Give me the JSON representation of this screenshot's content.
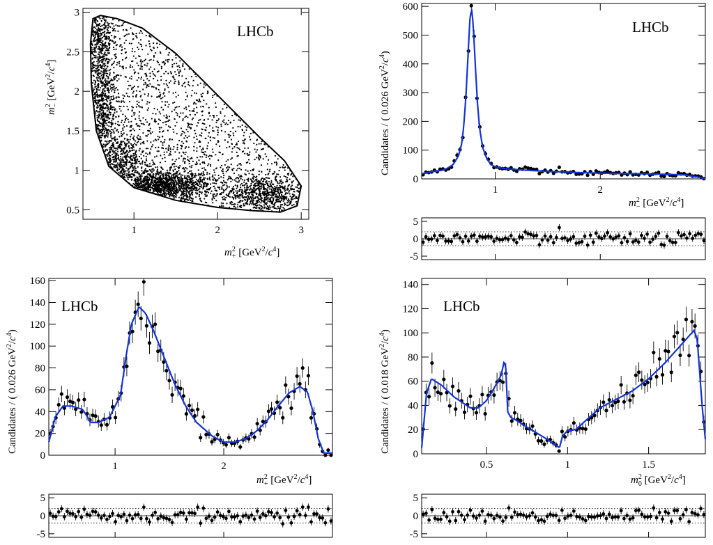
{
  "chart_data": [
    {
      "id": "dalitz",
      "type": "scatter",
      "logo": "LHCb",
      "xlabel": "m_+^2 [GeV^2/c^4]",
      "ylabel": "m_-^2 [GeV^2/c^4]",
      "xlim": [
        0.39,
        3.09
      ],
      "ylim": [
        0.38,
        3.05
      ],
      "x_ticks": [
        1,
        2,
        3
      ],
      "y_ticks": [
        0.5,
        1,
        1.5,
        2,
        2.5,
        3
      ],
      "boundary": [
        [
          0.51,
          2.92
        ],
        [
          0.6,
          2.96
        ],
        [
          0.8,
          2.92
        ],
        [
          1.1,
          2.8
        ],
        [
          1.5,
          2.48
        ],
        [
          2.0,
          1.95
        ],
        [
          2.5,
          1.42
        ],
        [
          2.8,
          1.12
        ],
        [
          3.0,
          0.8
        ],
        [
          2.95,
          0.55
        ],
        [
          2.75,
          0.47
        ],
        [
          2.4,
          0.49
        ],
        [
          2.0,
          0.53
        ],
        [
          1.5,
          0.62
        ],
        [
          1.0,
          0.78
        ],
        [
          0.7,
          1.05
        ],
        [
          0.55,
          1.5
        ],
        [
          0.49,
          2.1
        ],
        [
          0.48,
          2.6
        ],
        [
          0.51,
          2.92
        ]
      ],
      "point_count": 4500
    },
    {
      "id": "m_minus",
      "type": "line",
      "logo": "LHCb",
      "xlabel": "m_-^2 [GeV^2/c^4]",
      "ylabel": "Candidates / ( 0.026 GeV^2/c^4)",
      "xlim": [
        0.3,
        3.0
      ],
      "ylim": [
        0,
        610
      ],
      "x_ticks": [
        1,
        2
      ],
      "y_ticks": [
        0,
        100,
        200,
        300,
        400,
        500,
        600
      ],
      "fit": [
        [
          0.3,
          18
        ],
        [
          0.4,
          25
        ],
        [
          0.5,
          30
        ],
        [
          0.55,
          38
        ],
        [
          0.6,
          50
        ],
        [
          0.65,
          80
        ],
        [
          0.68,
          120
        ],
        [
          0.7,
          180
        ],
        [
          0.72,
          280
        ],
        [
          0.74,
          420
        ],
        [
          0.76,
          560
        ],
        [
          0.775,
          590
        ],
        [
          0.79,
          540
        ],
        [
          0.81,
          400
        ],
        [
          0.83,
          270
        ],
        [
          0.85,
          180
        ],
        [
          0.88,
          110
        ],
        [
          0.92,
          70
        ],
        [
          0.96,
          50
        ],
        [
          1.0,
          42
        ],
        [
          1.1,
          35
        ],
        [
          1.3,
          30
        ],
        [
          1.5,
          26
        ],
        [
          1.8,
          22
        ],
        [
          2.0,
          20
        ],
        [
          2.5,
          17
        ],
        [
          2.8,
          14
        ],
        [
          2.95,
          5
        ],
        [
          3.0,
          0
        ]
      ]
    },
    {
      "id": "m_plus",
      "type": "line",
      "logo": "LHCb",
      "xlabel": "m_+^2 [GeV^2/c^4]",
      "ylabel": "Candidates / ( 0.026 GeV^2/c^4)",
      "xlim": [
        0.39,
        3.0
      ],
      "ylim": [
        0,
        162
      ],
      "x_ticks": [
        1,
        2
      ],
      "y_ticks": [
        0,
        20,
        40,
        60,
        80,
        100,
        120,
        140,
        160
      ],
      "fit": [
        [
          0.39,
          12
        ],
        [
          0.45,
          35
        ],
        [
          0.52,
          45
        ],
        [
          0.6,
          45
        ],
        [
          0.7,
          42
        ],
        [
          0.78,
          30
        ],
        [
          0.85,
          30
        ],
        [
          0.95,
          35
        ],
        [
          1.05,
          55
        ],
        [
          1.1,
          90
        ],
        [
          1.15,
          120
        ],
        [
          1.22,
          136
        ],
        [
          1.28,
          130
        ],
        [
          1.35,
          115
        ],
        [
          1.45,
          90
        ],
        [
          1.55,
          65
        ],
        [
          1.65,
          45
        ],
        [
          1.75,
          30
        ],
        [
          1.9,
          17
        ],
        [
          2.0,
          12
        ],
        [
          2.1,
          12
        ],
        [
          2.2,
          15
        ],
        [
          2.3,
          22
        ],
        [
          2.4,
          32
        ],
        [
          2.5,
          45
        ],
        [
          2.6,
          57
        ],
        [
          2.7,
          63
        ],
        [
          2.77,
          58
        ],
        [
          2.82,
          40
        ],
        [
          2.87,
          15
        ],
        [
          2.92,
          2
        ]
      ]
    },
    {
      "id": "m_zero",
      "type": "line",
      "logo": "LHCb",
      "xlabel": "m_0^2 [GeV^2/c^4]",
      "ylabel": "Candidates / ( 0.018 GeV^2/c^4)",
      "xlim": [
        0.1,
        1.85
      ],
      "ylim": [
        0,
        145
      ],
      "x_ticks": [
        0.5,
        1,
        1.5
      ],
      "y_ticks": [
        0,
        20,
        40,
        60,
        80,
        100,
        120,
        140
      ],
      "fit": [
        [
          0.1,
          5
        ],
        [
          0.13,
          50
        ],
        [
          0.16,
          62
        ],
        [
          0.22,
          57
        ],
        [
          0.3,
          47
        ],
        [
          0.4,
          38
        ],
        [
          0.45,
          38
        ],
        [
          0.5,
          44
        ],
        [
          0.55,
          55
        ],
        [
          0.59,
          65
        ],
        [
          0.61,
          77
        ],
        [
          0.62,
          70
        ],
        [
          0.63,
          35
        ],
        [
          0.65,
          30
        ],
        [
          0.68,
          28
        ],
        [
          0.75,
          22
        ],
        [
          0.85,
          14
        ],
        [
          0.92,
          8
        ],
        [
          0.95,
          5
        ],
        [
          0.97,
          15
        ],
        [
          1.0,
          19
        ],
        [
          1.05,
          20
        ],
        [
          1.1,
          26
        ],
        [
          1.2,
          38
        ],
        [
          1.3,
          45
        ],
        [
          1.4,
          52
        ],
        [
          1.5,
          62
        ],
        [
          1.6,
          75
        ],
        [
          1.7,
          90
        ],
        [
          1.78,
          102
        ],
        [
          1.8,
          95
        ],
        [
          1.83,
          40
        ],
        [
          1.85,
          12
        ]
      ]
    }
  ],
  "pulls": {
    "ticks": [
      5,
      0,
      -5
    ],
    "band": [
      -2,
      2
    ]
  }
}
